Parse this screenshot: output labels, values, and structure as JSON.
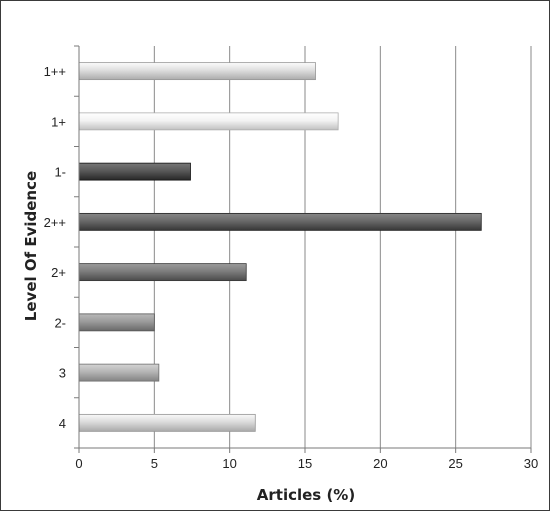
{
  "chart_data": {
    "type": "bar",
    "orientation": "horizontal",
    "categories": [
      "1++",
      "1+",
      "1-",
      "2++",
      "2+",
      "2-",
      "3",
      "4"
    ],
    "values": [
      15.7,
      17.2,
      7.4,
      26.7,
      11.1,
      5.0,
      5.3,
      11.7
    ],
    "xlabel": "Articles (%)",
    "ylabel": "Level Of Evidence",
    "xlim": [
      0,
      30
    ],
    "xticks": [
      "0",
      "5",
      "10",
      "15",
      "20",
      "25",
      "30"
    ],
    "grid": true,
    "legend": "none",
    "colors": {
      "1++": "#cfcfcf",
      "1+": "#e4e4e4",
      "1-": "#4a4a4a",
      "2++": "#5a5a5a",
      "2+": "#6e6e6e",
      "2-": "#8c8c8c",
      "3": "#a6a6a6",
      "4": "#cccccc"
    }
  }
}
